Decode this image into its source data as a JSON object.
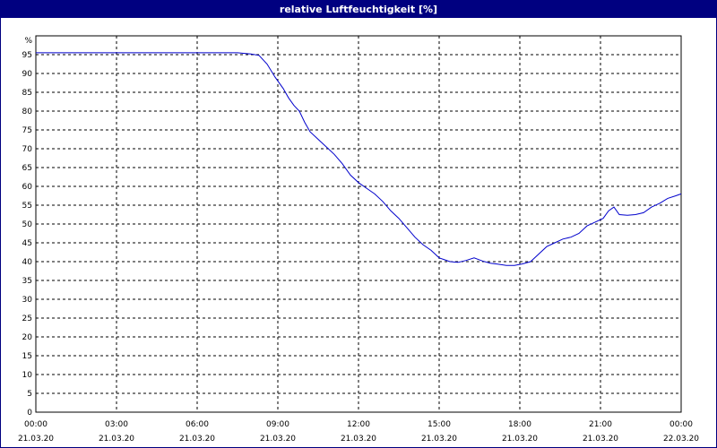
{
  "window": {
    "title": "relative Luftfeuchtigkeit [%]"
  },
  "chart_data": {
    "type": "line",
    "title": "relative Luftfeuchtigkeit [%]",
    "y_unit_label": "%",
    "ylim": [
      0,
      100
    ],
    "y_ticks": [
      0,
      5,
      10,
      15,
      20,
      25,
      30,
      35,
      40,
      45,
      50,
      55,
      60,
      65,
      70,
      75,
      80,
      85,
      90,
      95
    ],
    "x_range_hours": [
      0,
      24
    ],
    "x_ticks": [
      {
        "hour": 0,
        "time": "00:00",
        "date": "21.03.20"
      },
      {
        "hour": 3,
        "time": "03:00",
        "date": "21.03.20"
      },
      {
        "hour": 6,
        "time": "06:00",
        "date": "21.03.20"
      },
      {
        "hour": 9,
        "time": "09:00",
        "date": "21.03.20"
      },
      {
        "hour": 12,
        "time": "12:00",
        "date": "21.03.20"
      },
      {
        "hour": 15,
        "time": "15:00",
        "date": "21.03.20"
      },
      {
        "hour": 18,
        "time": "18:00",
        "date": "21.03.20"
      },
      {
        "hour": 21,
        "time": "21:00",
        "date": "21.03.20"
      },
      {
        "hour": 24,
        "time": "00:00",
        "date": "22.03.20"
      }
    ],
    "grid": true,
    "series": [
      {
        "color": "#0000cc",
        "x": [
          0,
          7.5,
          8.0,
          8.3,
          8.6,
          8.9,
          9.2,
          9.4,
          9.6,
          9.8,
          10.0,
          10.2,
          10.5,
          10.8,
          11.1,
          11.4,
          11.7,
          12.0,
          12.3,
          12.6,
          12.9,
          13.2,
          13.5,
          13.8,
          14.1,
          14.4,
          14.7,
          15.0,
          15.2,
          15.4,
          15.7,
          16.0,
          16.3,
          16.6,
          16.9,
          17.2,
          17.5,
          17.8,
          18.1,
          18.4,
          18.7,
          19.0,
          19.3,
          19.6,
          19.9,
          20.2,
          20.5,
          20.8,
          21.1,
          21.3,
          21.5,
          21.7,
          22.0,
          22.3,
          22.6,
          22.9,
          23.2,
          23.5,
          23.8,
          24.0
        ],
        "y": [
          95.5,
          95.5,
          95.2,
          94.8,
          92.5,
          89.0,
          86.0,
          83.5,
          81.5,
          80.0,
          77.0,
          74.5,
          72.5,
          70.5,
          68.5,
          66.0,
          63.0,
          61.0,
          59.5,
          58.0,
          56.0,
          53.5,
          51.5,
          49.0,
          46.5,
          44.5,
          43.0,
          41.0,
          40.5,
          40.0,
          39.8,
          40.3,
          41.0,
          40.2,
          39.6,
          39.3,
          39.0,
          39.0,
          39.4,
          40.0,
          42.0,
          44.0,
          45.0,
          46.0,
          46.5,
          47.5,
          49.5,
          50.5,
          51.5,
          53.5,
          54.5,
          52.5,
          52.3,
          52.5,
          53.0,
          54.5,
          55.5,
          56.8,
          57.5,
          58.0
        ]
      }
    ]
  }
}
